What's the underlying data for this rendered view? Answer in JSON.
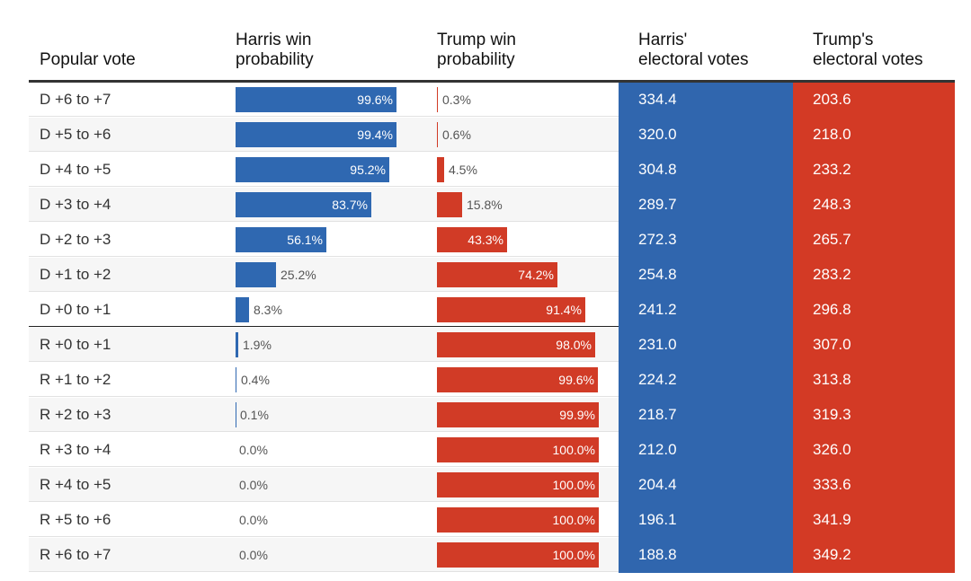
{
  "headers": {
    "popular_vote": "Popular vote",
    "harris_win": "Harris win\nprobability",
    "trump_win": "Trump win\nprobability",
    "harris_ev": "Harris'\nelectoral votes",
    "trump_ev": "Trump's\nelectoral votes"
  },
  "colors": {
    "harris": "#2f68b1",
    "trump": "#d13b26",
    "harris_ev_bg": "#3066ae",
    "trump_ev_bg": "#d33a25"
  },
  "chart_data": {
    "type": "table",
    "columns": [
      "Popular vote",
      "Harris win probability",
      "Trump win probability",
      "Harris' electoral votes",
      "Trump's electoral votes"
    ],
    "rows": [
      {
        "pv": "D +6 to +7",
        "h": 99.6,
        "t": 0.3,
        "hl": "99.6%",
        "tl": "0.3%",
        "hev": "334.4",
        "tev": "203.6"
      },
      {
        "pv": "D +5 to +6",
        "h": 99.4,
        "t": 0.6,
        "hl": "99.4%",
        "tl": "0.6%",
        "hev": "320.0",
        "tev": "218.0"
      },
      {
        "pv": "D +4 to +5",
        "h": 95.2,
        "t": 4.5,
        "hl": "95.2%",
        "tl": "4.5%",
        "hev": "304.8",
        "tev": "233.2"
      },
      {
        "pv": "D +3 to +4",
        "h": 83.7,
        "t": 15.8,
        "hl": "83.7%",
        "tl": "15.8%",
        "hev": "289.7",
        "tev": "248.3"
      },
      {
        "pv": "D +2 to +3",
        "h": 56.1,
        "t": 43.3,
        "hl": "56.1%",
        "tl": "43.3%",
        "hev": "272.3",
        "tev": "265.7"
      },
      {
        "pv": "D +1 to +2",
        "h": 25.2,
        "t": 74.2,
        "hl": "25.2%",
        "tl": "74.2%",
        "hev": "254.8",
        "tev": "283.2"
      },
      {
        "pv": "D +0 to +1",
        "h": 8.3,
        "t": 91.4,
        "hl": "8.3%",
        "tl": "91.4%",
        "hev": "241.2",
        "tev": "296.8"
      },
      {
        "pv": "R +0 to +1",
        "h": 1.9,
        "t": 98.0,
        "hl": "1.9%",
        "tl": "98.0%",
        "hev": "231.0",
        "tev": "307.0"
      },
      {
        "pv": "R +1 to +2",
        "h": 0.4,
        "t": 99.6,
        "hl": "0.4%",
        "tl": "99.6%",
        "hev": "224.2",
        "tev": "313.8"
      },
      {
        "pv": "R +2 to +3",
        "h": 0.1,
        "t": 99.9,
        "hl": "0.1%",
        "tl": "99.9%",
        "hev": "218.7",
        "tev": "319.3"
      },
      {
        "pv": "R +3 to +4",
        "h": 0.0,
        "t": 100.0,
        "hl": "0.0%",
        "tl": "100.0%",
        "hev": "212.0",
        "tev": "326.0"
      },
      {
        "pv": "R +4 to +5",
        "h": 0.0,
        "t": 100.0,
        "hl": "0.0%",
        "tl": "100.0%",
        "hev": "204.4",
        "tev": "333.6"
      },
      {
        "pv": "R +5 to +6",
        "h": 0.0,
        "t": 100.0,
        "hl": "0.0%",
        "tl": "100.0%",
        "hev": "196.1",
        "tev": "341.9"
      },
      {
        "pv": "R +6 to +7",
        "h": 0.0,
        "t": 100.0,
        "hl": "0.0%",
        "tl": "100.0%",
        "hev": "188.8",
        "tev": "349.2"
      }
    ]
  }
}
